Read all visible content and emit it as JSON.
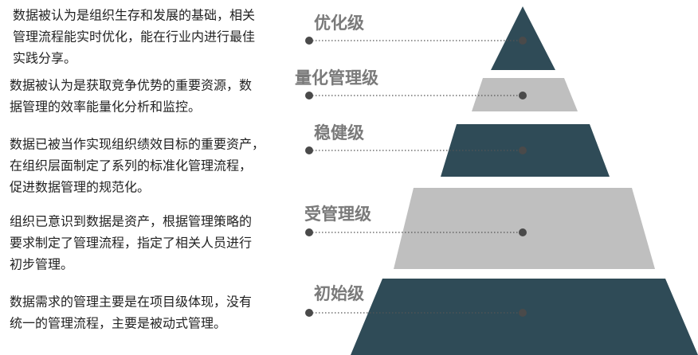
{
  "levels": [
    {
      "label": "优化级",
      "description": [
        "数据被认为是组织生存和发展的基础，相关",
        "管理流程能实时优化，能在行业内进行最佳",
        "实践分享。"
      ]
    },
    {
      "label": "量化管理级",
      "description": [
        "数据被认为是获取竞争优势的重要资源，数",
        "据管理的效率能量化分析和监控。"
      ]
    },
    {
      "label": "稳健级",
      "description": [
        "数据已被当作实现组织绩效目标的重要资产，",
        "在组织层面制定了系列的标准化管理流程，",
        "促进数据管理的规范化。"
      ]
    },
    {
      "label": "受管理级",
      "description": [
        "组织已意识到数据是资产，根据管理策略的",
        "要求制定了管理流程，指定了相关人员进行",
        "初步管理。"
      ]
    },
    {
      "label": "初始级",
      "description": [
        "数据需求的管理主要是在项目级体现，没有",
        "统一的管理流程，主要是被动式管理。"
      ]
    }
  ]
}
